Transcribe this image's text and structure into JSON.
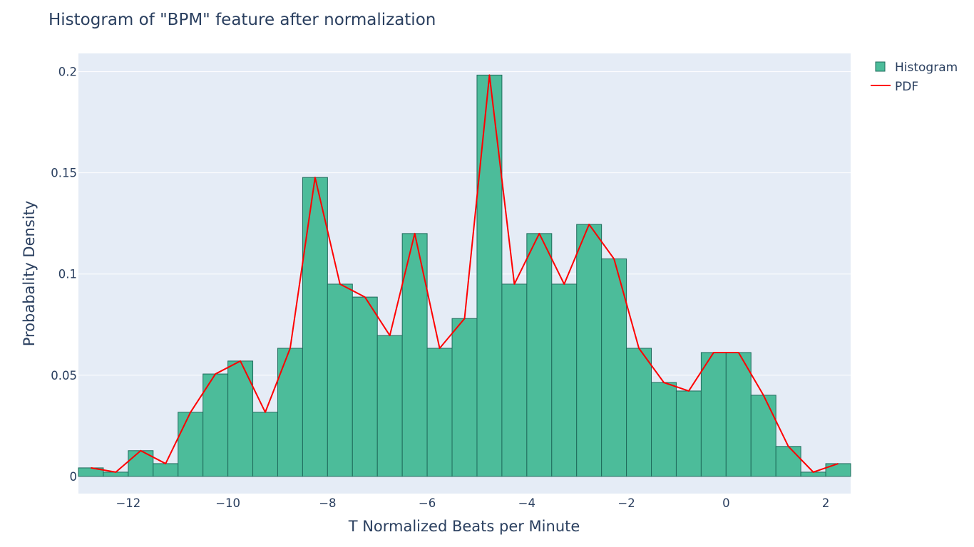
{
  "chart_data": {
    "type": "bar",
    "title": "Histogram of \"BPM\" feature after normalization",
    "xlabel": "T Normalized Beats per Minute",
    "ylabel": "Probabality Density",
    "xlim": [
      -13,
      2.5
    ],
    "ylim": [
      -0.0085,
      0.209
    ],
    "bin_width": 0.5,
    "x_ticks": [
      -12,
      -10,
      -8,
      -6,
      -4,
      -2,
      0,
      2
    ],
    "x_tick_labels": [
      "−12",
      "−10",
      "−8",
      "−6",
      "−4",
      "−2",
      "0",
      "2"
    ],
    "y_ticks": [
      0,
      0.05,
      0.1,
      0.15,
      0.2
    ],
    "y_tick_labels": [
      "0",
      "0.05",
      "0.1",
      "0.15",
      "0.2"
    ],
    "grid": true,
    "legend_placement": "top-right, outside plot",
    "series": [
      {
        "name": "Histogram",
        "kind": "bar",
        "color": "#4cbc9a",
        "edge_color": "#1f6b5c",
        "bins_x": [
          -12.75,
          -12.25,
          -11.75,
          -11.25,
          -10.75,
          -10.25,
          -9.75,
          -9.25,
          -8.75,
          -8.25,
          -7.75,
          -7.25,
          -6.75,
          -6.25,
          -5.75,
          -5.25,
          -4.75,
          -4.25,
          -3.75,
          -3.25,
          -2.75,
          -2.25,
          -1.75,
          -1.25,
          -0.75,
          -0.25,
          0.25,
          0.75,
          1.25,
          1.75,
          2.25
        ],
        "values": [
          0.0042,
          0.0021,
          0.0127,
          0.0063,
          0.0317,
          0.0506,
          0.057,
          0.0317,
          0.0633,
          0.1477,
          0.095,
          0.0886,
          0.0696,
          0.12,
          0.0633,
          0.078,
          0.1983,
          0.095,
          0.12,
          0.095,
          0.1245,
          0.1075,
          0.0633,
          0.0464,
          0.0422,
          0.0612,
          0.0612,
          0.0401,
          0.0148,
          0.0021,
          0.0063
        ]
      },
      {
        "name": "PDF",
        "kind": "line",
        "color": "#ff0000",
        "x": [
          -12.75,
          -12.25,
          -11.75,
          -11.25,
          -10.75,
          -10.25,
          -9.75,
          -9.25,
          -8.75,
          -8.25,
          -7.75,
          -7.25,
          -6.75,
          -6.25,
          -5.75,
          -5.25,
          -4.75,
          -4.25,
          -3.75,
          -3.25,
          -2.75,
          -2.25,
          -1.75,
          -1.25,
          -0.75,
          -0.25,
          0.25,
          0.75,
          1.25,
          1.75,
          2.25
        ],
        "values": [
          0.0042,
          0.0021,
          0.0127,
          0.0063,
          0.0317,
          0.0506,
          0.057,
          0.0317,
          0.0633,
          0.1477,
          0.095,
          0.0886,
          0.0696,
          0.12,
          0.0633,
          0.078,
          0.1983,
          0.095,
          0.12,
          0.095,
          0.1245,
          0.1075,
          0.0633,
          0.0464,
          0.0422,
          0.0612,
          0.0612,
          0.0401,
          0.0148,
          0.0021,
          0.0063
        ]
      }
    ]
  }
}
